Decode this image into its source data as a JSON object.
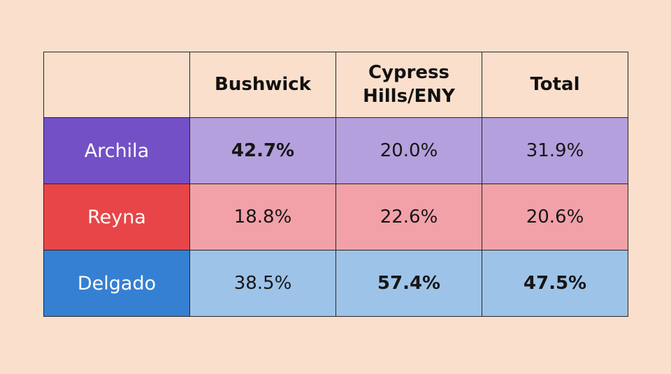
{
  "page": {
    "background_color": "#FADFCC"
  },
  "table": {
    "border_color": "#262626",
    "header": {
      "corner": "",
      "columns": [
        "Bushwick",
        "Cypress Hills/ENY",
        "Total"
      ]
    },
    "rows": [
      {
        "label": "Archila",
        "label_bg": "#7450C6",
        "cells_bg": "#B4A0DC",
        "cells": [
          {
            "text": "42.7%",
            "bold": true
          },
          {
            "text": "20.0%",
            "bold": false
          },
          {
            "text": "31.9%",
            "bold": false
          }
        ]
      },
      {
        "label": "Reyna",
        "label_bg": "#E84548",
        "cells_bg": "#F2A1A8",
        "cells": [
          {
            "text": "18.8%",
            "bold": false
          },
          {
            "text": "22.6%",
            "bold": false
          },
          {
            "text": "20.6%",
            "bold": false
          }
        ]
      },
      {
        "label": "Delgado",
        "label_bg": "#3580D2",
        "cells_bg": "#9DC3E8",
        "cells": [
          {
            "text": "38.5%",
            "bold": false
          },
          {
            "text": "57.4%",
            "bold": true
          },
          {
            "text": "47.5%",
            "bold": true
          }
        ]
      }
    ]
  },
  "chart_data": {
    "type": "table",
    "columns": [
      "Bushwick",
      "Cypress Hills/ENY",
      "Total"
    ],
    "rows": [
      {
        "label": "Archila",
        "values": [
          42.7,
          20.0,
          31.9
        ]
      },
      {
        "label": "Reyna",
        "values": [
          18.8,
          22.6,
          20.6
        ]
      },
      {
        "label": "Delgado",
        "values": [
          38.5,
          57.4,
          47.5
        ]
      }
    ],
    "unit": "percent",
    "notes": "Bold cells mark the leading value per column: Archila in Bushwick; Delgado in Cypress Hills/ENY and Total"
  }
}
